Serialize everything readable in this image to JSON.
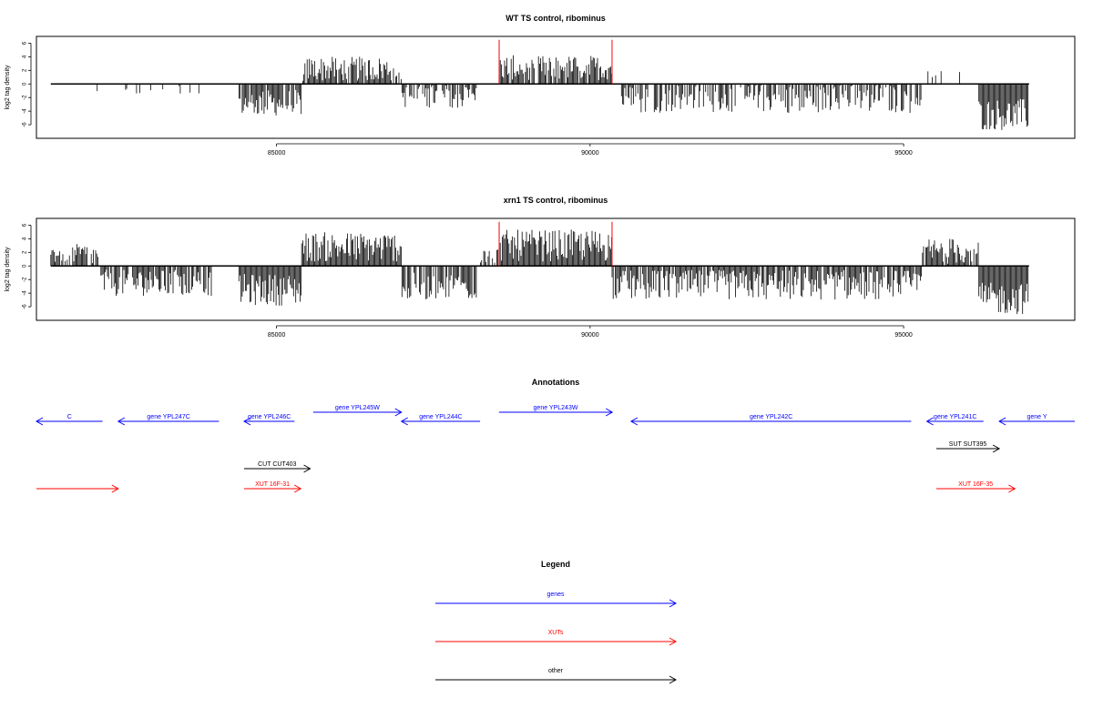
{
  "colors": {
    "gene": "#0000ff",
    "xut": "#ff0000",
    "other": "#000000",
    "trace": "#000000",
    "trace_highlight": "#ff0000"
  },
  "chart_data": [
    {
      "type": "bar",
      "title": "WT TS control, ribominus",
      "xlabel": "",
      "ylabel": "log2 tag density",
      "xlim": [
        81200,
        97700
      ],
      "ylim": [
        -8,
        7
      ],
      "xticks": [
        85000,
        90000,
        95000
      ],
      "yticks": [
        -6,
        -4,
        -2,
        0,
        2,
        4,
        6
      ],
      "highlight_ranges": [
        [
          88550,
          90350
        ]
      ],
      "segments": [
        {
          "from": 81400,
          "to": 81500,
          "mean": 1.5,
          "amp": 0.5,
          "density": 0.02
        },
        {
          "from": 81800,
          "to": 81900,
          "mean": 1.2,
          "amp": 0.5,
          "density": 0.02
        },
        {
          "from": 82000,
          "to": 83800,
          "mean": -1.0,
          "amp": 0.6,
          "density": 0.12
        },
        {
          "from": 84400,
          "to": 85400,
          "mean": -2.8,
          "amp": 1.5,
          "density": 0.9
        },
        {
          "from": 85400,
          "to": 87000,
          "mean": 2.2,
          "amp": 1.4,
          "density": 0.85
        },
        {
          "from": 87000,
          "to": 88200,
          "mean": -1.8,
          "amp": 1.3,
          "density": 0.6
        },
        {
          "from": 88550,
          "to": 90350,
          "mean": 2.4,
          "amp": 1.4,
          "density": 0.9
        },
        {
          "from": 90500,
          "to": 95300,
          "mean": -2.2,
          "amp": 1.6,
          "density": 0.65
        },
        {
          "from": 95300,
          "to": 96000,
          "mean": 1.0,
          "amp": 0.8,
          "density": 0.08
        },
        {
          "from": 96200,
          "to": 97000,
          "mean": -4.5,
          "amp": 1.8,
          "density": 1.0
        }
      ],
      "spikes": [
        {
          "x": 88550,
          "y": 6.5
        },
        {
          "x": 90350,
          "y": 6.5
        }
      ]
    },
    {
      "type": "bar",
      "title": "xrn1 TS control, ribominus",
      "xlabel": "",
      "ylabel": "log2 tag density",
      "xlim": [
        81200,
        97700
      ],
      "ylim": [
        -8,
        7
      ],
      "xticks": [
        85000,
        90000,
        95000
      ],
      "yticks": [
        -6,
        -4,
        -2,
        0,
        2,
        4,
        6
      ],
      "highlight_ranges": [
        [
          88550,
          90350
        ]
      ],
      "segments": [
        {
          "from": 81400,
          "to": 82200,
          "mean": 1.8,
          "amp": 1.1,
          "density": 0.7
        },
        {
          "from": 82200,
          "to": 84000,
          "mean": -2.5,
          "amp": 1.5,
          "density": 0.8
        },
        {
          "from": 84400,
          "to": 85400,
          "mean": -3.5,
          "amp": 1.8,
          "density": 1.0
        },
        {
          "from": 85400,
          "to": 87000,
          "mean": 2.8,
          "amp": 1.7,
          "density": 1.0
        },
        {
          "from": 87000,
          "to": 88200,
          "mean": -3.0,
          "amp": 1.6,
          "density": 0.8
        },
        {
          "from": 88200,
          "to": 88550,
          "mean": 1.5,
          "amp": 1.0,
          "density": 0.5
        },
        {
          "from": 88550,
          "to": 90350,
          "mean": 3.0,
          "amp": 1.8,
          "density": 1.0
        },
        {
          "from": 90350,
          "to": 95300,
          "mean": -2.8,
          "amp": 1.7,
          "density": 0.9
        },
        {
          "from": 95300,
          "to": 96200,
          "mean": 2.2,
          "amp": 1.5,
          "density": 0.8
        },
        {
          "from": 96200,
          "to": 97000,
          "mean": -4.8,
          "amp": 1.8,
          "density": 1.0
        }
      ],
      "spikes": [
        {
          "x": 88550,
          "y": 6.5
        },
        {
          "x": 90350,
          "y": 6.5
        }
      ]
    }
  ],
  "annotations": {
    "title": "Annotations",
    "xlim": [
      81200,
      97700
    ],
    "features": [
      {
        "label": "C",
        "kind": "gene",
        "strand": "-",
        "start": 81200,
        "end": 82250,
        "row": 1
      },
      {
        "label": "gene YPL247C",
        "kind": "gene",
        "strand": "-",
        "start": 82500,
        "end": 84100,
        "row": 1
      },
      {
        "label": "gene YPL246C",
        "kind": "gene",
        "strand": "-",
        "start": 84500,
        "end": 85300,
        "row": 1
      },
      {
        "label": "gene YPL245W",
        "kind": "gene",
        "strand": "+",
        "start": 85600,
        "end": 87000,
        "row": 0
      },
      {
        "label": "gene YPL244C",
        "kind": "gene",
        "strand": "-",
        "start": 87000,
        "end": 88250,
        "row": 1
      },
      {
        "label": "gene YPL243W",
        "kind": "gene",
        "strand": "+",
        "start": 88550,
        "end": 90350,
        "row": 0
      },
      {
        "label": "gene YPL242C",
        "kind": "gene",
        "strand": "-",
        "start": 90650,
        "end": 95100,
        "row": 1
      },
      {
        "label": "gene YPL241C",
        "kind": "gene",
        "strand": "-",
        "start": 95350,
        "end": 96250,
        "row": 1
      },
      {
        "label": "gene Y",
        "kind": "gene",
        "strand": "-",
        "start": 96500,
        "end": 97700,
        "row": 1
      },
      {
        "label": "CUT CUT403",
        "kind": "other",
        "strand": "+",
        "start": 84500,
        "end": 85550,
        "row": 2
      },
      {
        "label": "SUT SUT395",
        "kind": "other",
        "strand": "+",
        "start": 95500,
        "end": 96500,
        "row": 3
      },
      {
        "label": "",
        "kind": "xut",
        "strand": "+",
        "start": 81200,
        "end": 82500,
        "row": 4
      },
      {
        "label": "XUT 16F-31",
        "kind": "xut",
        "strand": "+",
        "start": 84500,
        "end": 85400,
        "row": 4
      },
      {
        "label": "XUT 16F-35",
        "kind": "xut",
        "strand": "+",
        "start": 95500,
        "end": 96750,
        "row": 4
      }
    ]
  },
  "legend": {
    "title": "Legend",
    "items": [
      {
        "label": "genes",
        "kind": "gene"
      },
      {
        "label": "XUTs",
        "kind": "xut"
      },
      {
        "label": "other",
        "kind": "other"
      }
    ]
  }
}
